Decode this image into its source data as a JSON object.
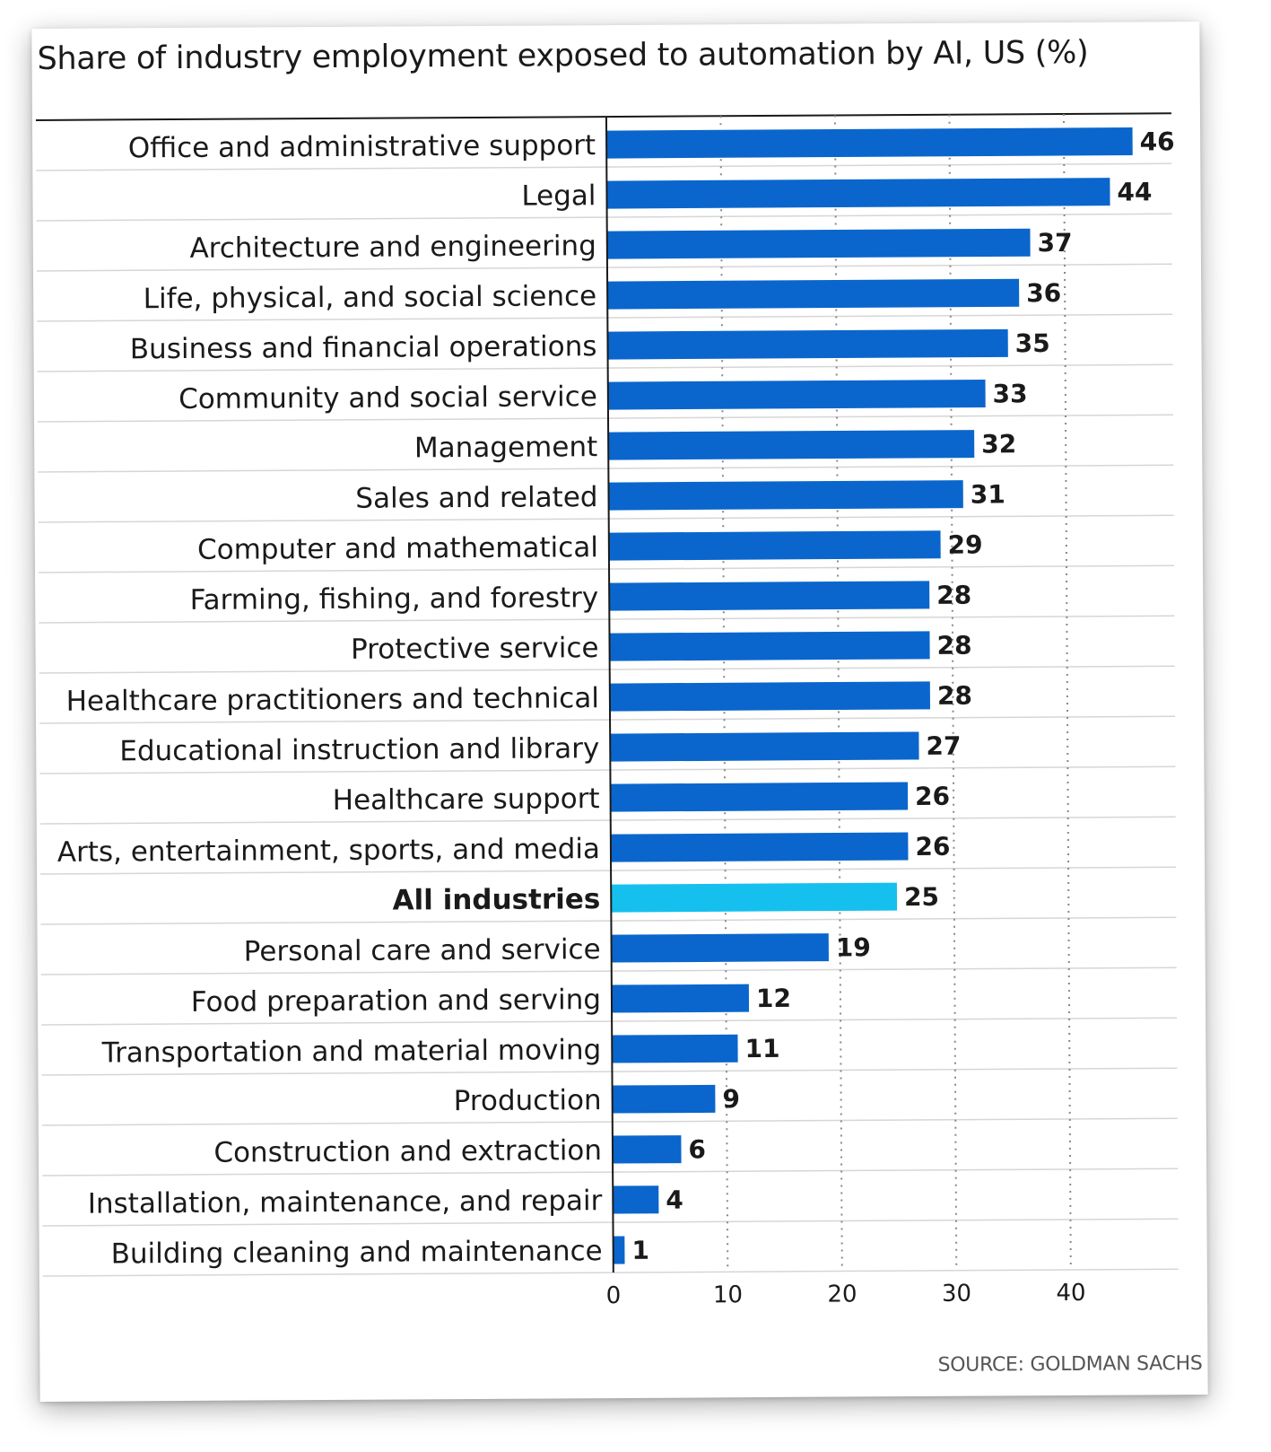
{
  "chart_data": {
    "type": "bar",
    "orientation": "horizontal",
    "title": "Share of industry employment exposed to automation by AI, US (%)",
    "source": "SOURCE: GOLDMAN SACHS",
    "categories": [
      "Office and administrative support",
      "Legal",
      "Architecture and engineering",
      "Life, physical, and social science",
      "Business and financial operations",
      "Community and social service",
      "Management",
      "Sales and related",
      "Computer and mathematical",
      "Farming, fishing, and forestry",
      "Protective service",
      "Healthcare practitioners and technical",
      "Educational instruction and library",
      "Healthcare support",
      "Arts, entertainment, sports, and media",
      "All industries",
      "Personal care and service",
      "Food preparation and serving",
      "Transportation and material moving",
      "Production",
      "Construction and extraction",
      "Installation, maintenance, and repair",
      "Building cleaning and maintenance"
    ],
    "values": [
      46,
      44,
      37,
      36,
      35,
      33,
      32,
      31,
      29,
      28,
      28,
      28,
      27,
      26,
      26,
      25,
      19,
      12,
      11,
      9,
      6,
      4,
      1
    ],
    "highlight_index": 15,
    "xlim": [
      0,
      48
    ],
    "xticks": [
      0,
      10,
      20,
      30,
      40
    ],
    "xlabel": "",
    "ylabel": "",
    "grid": "vertical dotted",
    "colors": {
      "bar": "#0a66cc",
      "highlight": "#16c0ee",
      "grid": "#888888",
      "row_separator": "#d6d6d6",
      "axis": "#1a1a1a"
    }
  }
}
